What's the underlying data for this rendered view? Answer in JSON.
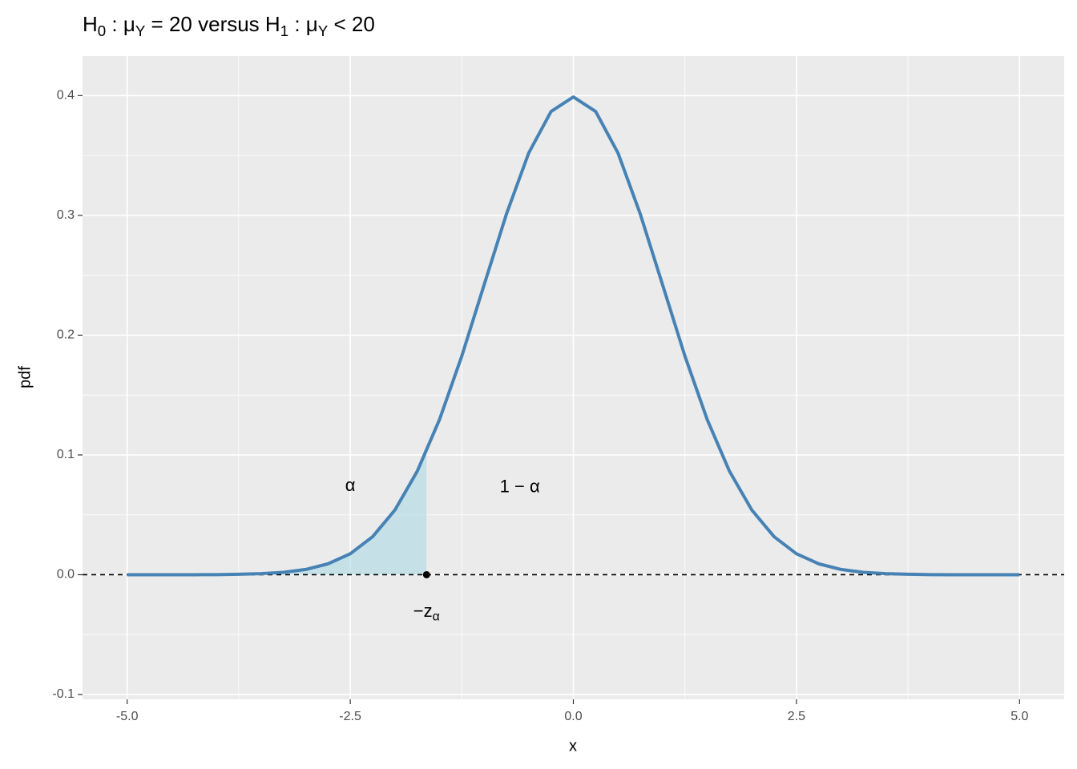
{
  "chart_data": {
    "type": "line",
    "title": [
      "H",
      "0",
      " : μ",
      "Y",
      " = 20  versus  H",
      "1",
      " : μ",
      "Y",
      " < 20"
    ],
    "xlabel": "x",
    "ylabel": "pdf",
    "x": [
      -5,
      -4.75,
      -4.5,
      -4.25,
      -4,
      -3.75,
      -3.5,
      -3.25,
      -3,
      -2.75,
      -2.5,
      -2.25,
      -2,
      -1.75,
      -1.5,
      -1.25,
      -1,
      -0.75,
      -0.5,
      -0.25,
      0,
      0.25,
      0.5,
      0.75,
      1,
      1.25,
      1.5,
      1.75,
      2,
      2.25,
      2.5,
      2.75,
      3,
      3.25,
      3.5,
      3.75,
      4,
      4.25,
      4.5,
      4.75,
      5
    ],
    "values": [
      0,
      0,
      0,
      0,
      0.0001,
      0.0004,
      0.0009,
      0.002,
      0.0044,
      0.0091,
      0.0175,
      0.0317,
      0.054,
      0.0863,
      0.1295,
      0.1826,
      0.242,
      0.3011,
      0.3521,
      0.3867,
      0.3989,
      0.3867,
      0.3521,
      0.3011,
      0.242,
      0.1826,
      0.1295,
      0.0863,
      0.054,
      0.0317,
      0.0175,
      0.0091,
      0.0044,
      0.002,
      0.0009,
      0.0004,
      0.0001,
      0,
      0,
      0,
      0
    ],
    "color": "#4682b4",
    "shade": {
      "x": [
        -5,
        -4.75,
        -4.5,
        -4.25,
        -4,
        -3.75,
        -3.5,
        -3.25,
        -3,
        -2.75,
        -2.5,
        -2.25,
        -2,
        -1.75,
        -1.645
      ],
      "values": [
        0,
        0,
        0,
        0,
        0.0001,
        0.0004,
        0.0009,
        0.002,
        0.0044,
        0.0091,
        0.0175,
        0.0317,
        0.054,
        0.0863,
        0.1031
      ],
      "color": "#add8e6"
    },
    "hline": 0,
    "point": {
      "x": -1.645,
      "y": 0
    },
    "annotations": [
      {
        "x": -2.5,
        "y": 0.074,
        "label": [
          "α"
        ]
      },
      {
        "x": -0.6,
        "y": 0.073,
        "label": [
          "1 − α"
        ]
      },
      {
        "x": -1.645,
        "y": -0.031,
        "label": [
          "−z",
          "α"
        ]
      }
    ],
    "xlim": [
      -5.5,
      5.5
    ],
    "ylim": [
      -0.104,
      0.433
    ],
    "xticks": [
      {
        "value": -5,
        "label": "-5.0"
      },
      -2.5,
      {
        "value": 0,
        "label": "0.0"
      },
      2.5,
      {
        "value": 5,
        "label": "5.0"
      }
    ],
    "yticks": [
      -0.1,
      {
        "value": 0,
        "label": "0.0"
      },
      0.1,
      0.2,
      0.3,
      0.4
    ],
    "minor_xticks": [
      -3.75,
      -1.25,
      1.25,
      3.75
    ],
    "minor_yticks": [
      -0.05,
      0.05,
      0.15,
      0.25,
      0.35
    ],
    "grid": true
  }
}
